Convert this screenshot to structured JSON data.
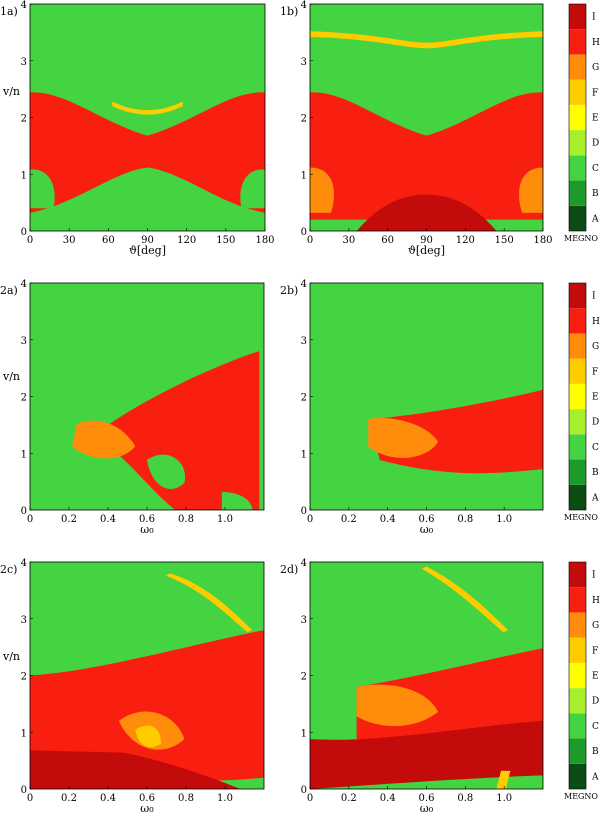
{
  "colorbar": {
    "title": "MEGNO",
    "levels": [
      {
        "label": "A",
        "color": "#0b4d12"
      },
      {
        "label": "B",
        "color": "#1e9a2a"
      },
      {
        "label": "C",
        "color": "#44d441"
      },
      {
        "label": "D",
        "color": "#a6ef2a"
      },
      {
        "label": "E",
        "color": "#ffff00"
      },
      {
        "label": "F",
        "color": "#ffcc00"
      },
      {
        "label": "G",
        "color": "#ff8c0a"
      },
      {
        "label": "H",
        "color": "#f81e10"
      },
      {
        "label": "I",
        "color": "#c40b0b"
      }
    ]
  },
  "chart_data": [
    {
      "panel": "1a)",
      "type": "heatmap",
      "xlabel": "ϑ[deg]",
      "ylabel": "v/n",
      "xlim": [
        0,
        180
      ],
      "ylim": [
        0,
        4
      ],
      "xticks": [
        "0",
        "30",
        "60",
        "90",
        "120",
        "150",
        "180"
      ],
      "yticks": [
        "0",
        "1",
        "2",
        "3",
        "4"
      ],
      "background_level": "C"
    },
    {
      "panel": "1b)",
      "type": "heatmap",
      "xlabel": "ϑ[deg]",
      "ylabel": "",
      "xlim": [
        0,
        180
      ],
      "ylim": [
        0,
        4
      ],
      "xticks": [
        "0",
        "30",
        "60",
        "90",
        "120",
        "150",
        "180"
      ],
      "yticks": [
        "0",
        "1",
        "2",
        "3",
        "4"
      ],
      "background_level": "C"
    },
    {
      "panel": "2a)",
      "type": "heatmap",
      "xlabel": "ω₀",
      "ylabel": "v/n",
      "xlim": [
        0,
        1.2
      ],
      "ylim": [
        0,
        4
      ],
      "xticks": [
        "0",
        "0.2",
        "0.4",
        "0.6",
        "0.8",
        "1.0"
      ],
      "yticks": [
        "0",
        "1",
        "2",
        "3",
        "4"
      ],
      "background_level": "C"
    },
    {
      "panel": "2b)",
      "type": "heatmap",
      "xlabel": "ω₀",
      "ylabel": "",
      "xlim": [
        0,
        1.2
      ],
      "ylim": [
        0,
        4
      ],
      "xticks": [
        "0",
        "0.2",
        "0.4",
        "0.6",
        "0.8",
        "1.0"
      ],
      "yticks": [
        "0",
        "1",
        "2",
        "3",
        "4"
      ],
      "background_level": "C"
    },
    {
      "panel": "2c)",
      "type": "heatmap",
      "xlabel": "ω₀",
      "ylabel": "v/n",
      "xlim": [
        0,
        1.2
      ],
      "ylim": [
        0,
        4
      ],
      "xticks": [
        "0",
        "0.2",
        "0.4",
        "0.6",
        "0.8",
        "1.0"
      ],
      "yticks": [
        "0",
        "1",
        "2",
        "3",
        "4"
      ],
      "background_level": "C"
    },
    {
      "panel": "2d)",
      "type": "heatmap",
      "xlabel": "ω₀",
      "ylabel": "",
      "xlim": [
        0,
        1.2
      ],
      "ylim": [
        0,
        4
      ],
      "xticks": [
        "0",
        "0.2",
        "0.4",
        "0.6",
        "0.8",
        "1.0"
      ],
      "yticks": [
        "0",
        "1",
        "2",
        "3",
        "4"
      ],
      "background_level": "C"
    }
  ]
}
